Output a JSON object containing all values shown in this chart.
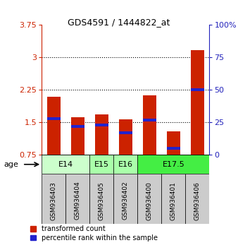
{
  "title": "GDS4591 / 1444822_at",
  "samples": [
    "GSM936403",
    "GSM936404",
    "GSM936405",
    "GSM936402",
    "GSM936400",
    "GSM936401",
    "GSM936406"
  ],
  "red_values": [
    2.1,
    1.62,
    1.68,
    1.57,
    2.13,
    1.3,
    3.17
  ],
  "blue_values": [
    28,
    22,
    23,
    17,
    27,
    5,
    50
  ],
  "y_min": 0.75,
  "y_max": 3.75,
  "y_ticks_left": [
    0.75,
    1.5,
    2.25,
    3.0,
    3.75
  ],
  "y_ticks_right": [
    0,
    25,
    50,
    75,
    100
  ],
  "y_tick_labels_left": [
    "0.75",
    "1.5",
    "2.25",
    "3",
    "3.75"
  ],
  "y_tick_labels_right": [
    "0",
    "25",
    "50",
    "75",
    "100%"
  ],
  "dotted_lines": [
    1.5,
    2.25,
    3.0
  ],
  "age_groups": [
    {
      "label": "E14",
      "indices": [
        0,
        1
      ],
      "color": "#ccffcc"
    },
    {
      "label": "E15",
      "indices": [
        2
      ],
      "color": "#aaffaa"
    },
    {
      "label": "E16",
      "indices": [
        3
      ],
      "color": "#aaffaa"
    },
    {
      "label": "E17.5",
      "indices": [
        4,
        5,
        6
      ],
      "color": "#44ee44"
    }
  ],
  "bar_color_red": "#cc2200",
  "bar_color_blue": "#2222cc",
  "bar_width": 0.55,
  "legend_red": "transformed count",
  "legend_blue": "percentile rank within the sample",
  "age_label": "age",
  "background_color": "#ffffff",
  "axis_color_left": "#cc2200",
  "axis_color_right": "#2222bb",
  "sample_box_color": "#cccccc"
}
